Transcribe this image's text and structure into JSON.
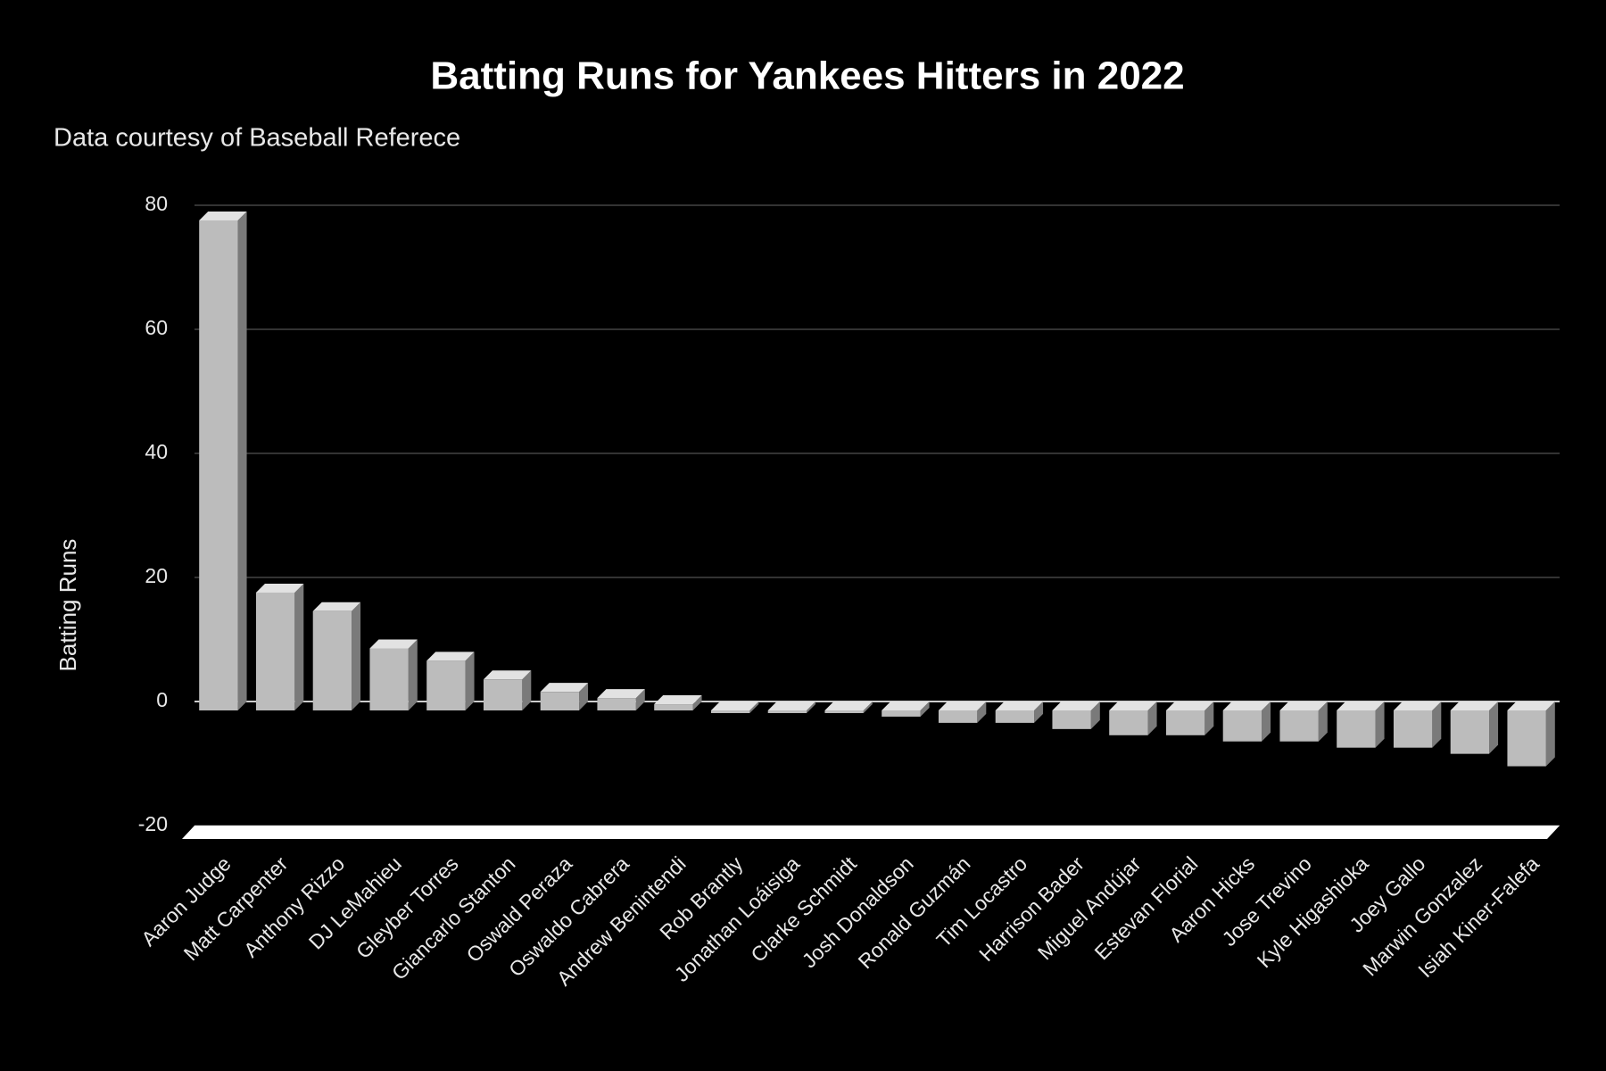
{
  "chart_data": {
    "type": "bar",
    "title": "Batting Runs for Yankees Hitters in 2022",
    "subtitle": "Data courtesy of Baseball Referece",
    "y_label": "Batting Runs",
    "categories": [
      "Aaron Judge",
      "Matt Carpenter",
      "Anthony Rizzo",
      "DJ LeMahieu",
      "Gleyber Torres",
      "Giancarlo Stanton",
      "Oswald Peraza",
      "Oswaldo Cabrera",
      "Andrew Benintendi",
      "Rob Brantly",
      "Jonathan Loáisiga",
      "Clarke Schmidt",
      "Josh Donaldson",
      "Ronald Guzmán",
      "Tim Locastro",
      "Harrison Bader",
      "Miguel Andújar",
      "Estevan Florial",
      "Aaron Hicks",
      "Jose Trevino",
      "Kyle Higashioka",
      "Joey Gallo",
      "Marwin Gonzalez",
      "Isiah Kiner-Falefa"
    ],
    "values": [
      79,
      19,
      16,
      10,
      8,
      5,
      3,
      2,
      1,
      0,
      0,
      0,
      -1,
      -2,
      -2,
      -3,
      -4,
      -4,
      -5,
      -5,
      -6,
      -6,
      -7,
      -9
    ],
    "color": "#bcbcbc",
    "ylim": [
      -20,
      80
    ],
    "yticks": [
      -20,
      0,
      20,
      40,
      60,
      80
    ],
    "grid": true
  }
}
